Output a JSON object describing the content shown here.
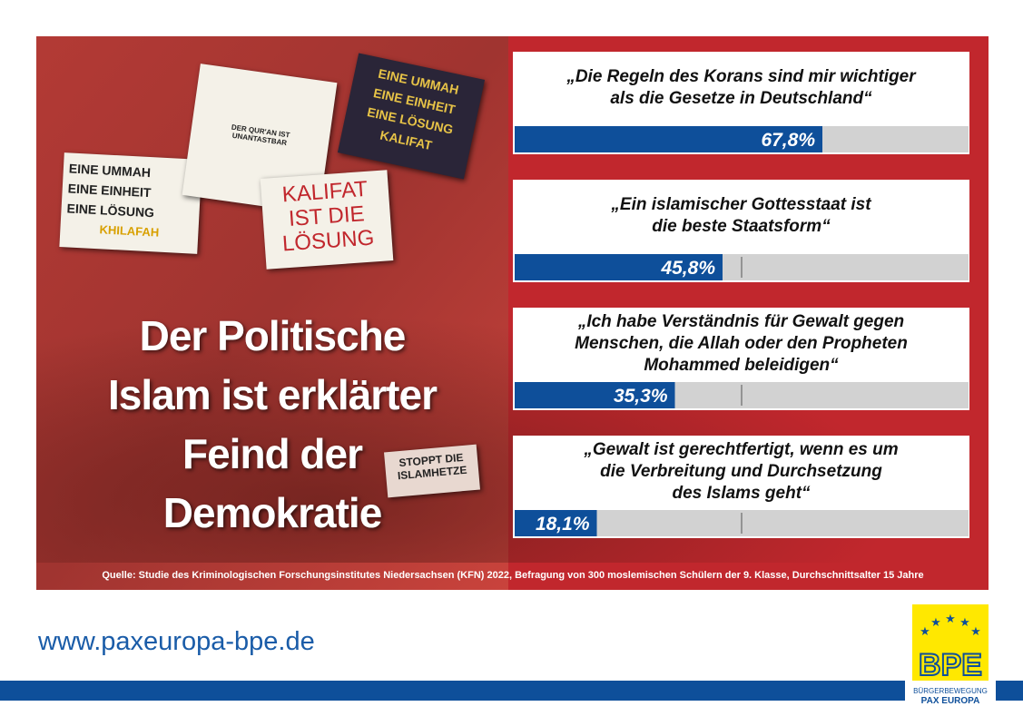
{
  "headline": "Der Politische\nIslam ist erklärter\nFeind der\nDemokratie",
  "photo_signs": [
    {
      "text": "EINE  UMMAH\nEINE  EINHEIT\nEINE  LÖSUNG",
      "sub": "KHILAFAH"
    },
    {
      "text": "DER QUR'AN IST\nUNANTASTBAR"
    },
    {
      "text": "EINE UMMAH\nEINE EINHEIT\nEINE LÖSUNG\nKALIFAT"
    },
    {
      "text": "KALIFAT\nIST DIE\nLÖSUNG"
    },
    {
      "text": "STOPPT DIE\nISLAMHETZE"
    }
  ],
  "chart_data": {
    "type": "bar",
    "orientation": "horizontal",
    "categories": [
      "„Die Regeln des Korans sind mir wichtiger\nals die Gesetze in Deutschland“",
      "„Ein islamischer Gottesstaat ist\ndie beste Staatsform“",
      "„Ich habe Verständnis für Gewalt gegen\nMenschen, die Allah oder den Propheten\nMohammed beleidigen“",
      "„Gewalt ist gerechtfertigt, wenn es um\ndie Verbreitung und Durchsetzung\ndes Islams geht“"
    ],
    "values": [
      67.8,
      45.8,
      35.3,
      18.1
    ],
    "value_labels": [
      "67,8%",
      "45,8%",
      "35,3%",
      "18,1%"
    ],
    "color": "#0e4f9a",
    "xlim": [
      0,
      100
    ],
    "xticks": [
      50
    ]
  },
  "source": "Quelle: Studie des Kriminologischen Forschungsinstitutes Niedersachsen (KFN) 2022, Befragung von 300 moslemischen Schülern der 9. Klasse, Durchschnittsalter 15 Jahre",
  "website": "www.paxeuropa-bpe.de",
  "logo": {
    "name": "BPE",
    "line1": "BÜRGERBEWEGUNG",
    "line2": "PAX EUROPA"
  }
}
